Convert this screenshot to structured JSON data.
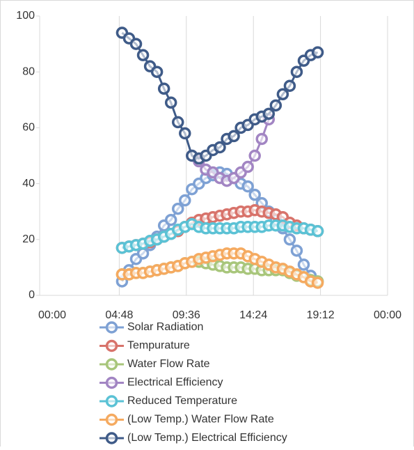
{
  "chart_data": {
    "type": "line",
    "x": [
      5,
      5.5,
      6,
      6.5,
      7,
      7.5,
      8,
      8.5,
      9,
      9.5,
      10,
      10.5,
      11,
      11.5,
      12,
      12.5,
      13,
      13.5,
      14,
      14.5,
      15,
      15.5,
      16,
      16.5,
      17,
      17.5,
      18,
      18.5,
      19
    ],
    "xlim": [
      0,
      24
    ],
    "xticks": [
      {
        "value": 0,
        "label": "00:00"
      },
      {
        "value": 4.8,
        "label": "04:48"
      },
      {
        "value": 9.6,
        "label": "09:36"
      },
      {
        "value": 14.4,
        "label": "14:24"
      },
      {
        "value": 19.2,
        "label": "19:12"
      },
      {
        "value": 24,
        "label": "00:00"
      }
    ],
    "ylim": [
      0,
      100
    ],
    "yticks": [
      0,
      20,
      40,
      60,
      80,
      100
    ],
    "grid": "x",
    "legend": "bottom",
    "series": [
      {
        "name": "Solar Radiation",
        "color": "#7ea1d4",
        "values": [
          5,
          9,
          13,
          15,
          18,
          21,
          25,
          27,
          31,
          34,
          38,
          40,
          42,
          43,
          44,
          43.5,
          42,
          40,
          39,
          36,
          33,
          30,
          27,
          24,
          20,
          16,
          11,
          7,
          5
        ]
      },
      {
        "name": "Tempurature",
        "color": "#d8736b",
        "values": [
          17,
          17.5,
          18,
          18.5,
          19,
          20,
          21,
          22,
          23,
          24.5,
          26,
          27,
          27.5,
          28,
          28.5,
          29,
          29.5,
          30,
          30,
          30.5,
          30,
          29.5,
          29,
          28,
          26,
          25,
          24,
          23.5,
          23
        ]
      },
      {
        "name": "Water Flow Rate",
        "color": "#a8c67b",
        "values": [
          7.5,
          7.5,
          8,
          8,
          8.5,
          9,
          9.5,
          10,
          10.5,
          11.5,
          12,
          12,
          11.5,
          11,
          10.5,
          10,
          10,
          10,
          9.5,
          9.5,
          9,
          9,
          9,
          9,
          8,
          7,
          6.5,
          5.5,
          5
        ]
      },
      {
        "name": "Electrical Efficiency",
        "color": "#a285c3",
        "values": [
          null,
          null,
          null,
          null,
          null,
          null,
          null,
          null,
          null,
          null,
          50,
          48,
          45,
          44,
          42,
          41,
          42,
          44,
          46,
          50,
          56,
          63,
          null,
          null,
          null,
          null,
          null,
          null,
          null
        ]
      },
      {
        "name": "Reduced Temperature",
        "color": "#5bc2d5",
        "values": [
          17,
          17.5,
          18,
          18.5,
          19.5,
          20,
          21,
          22,
          23.5,
          24.5,
          25.5,
          24.5,
          24,
          24,
          24,
          24,
          24,
          24.5,
          24.5,
          24.5,
          24.5,
          25,
          25,
          25,
          24.5,
          24,
          24,
          23.5,
          23
        ]
      },
      {
        "name": "(Low Temp.) Water Flow Rate",
        "color": "#f5aa60",
        "values": [
          7.5,
          7.5,
          8,
          8,
          8.5,
          9,
          9.5,
          10,
          10.5,
          11.5,
          12,
          13,
          13.5,
          14,
          14.5,
          15,
          15,
          15,
          14,
          13,
          12,
          11,
          10,
          9.5,
          8.5,
          7.5,
          6.5,
          5,
          4.5
        ]
      },
      {
        "name": "(Low Temp.) Electrical Efficiency",
        "color": "#3f5b88",
        "values": [
          94,
          92,
          90,
          86,
          82,
          80,
          74,
          69,
          62,
          58,
          50,
          49,
          50,
          52,
          53,
          56,
          57,
          60,
          61,
          63,
          64,
          65,
          68,
          72,
          75,
          80,
          84,
          86,
          87
        ]
      }
    ]
  }
}
